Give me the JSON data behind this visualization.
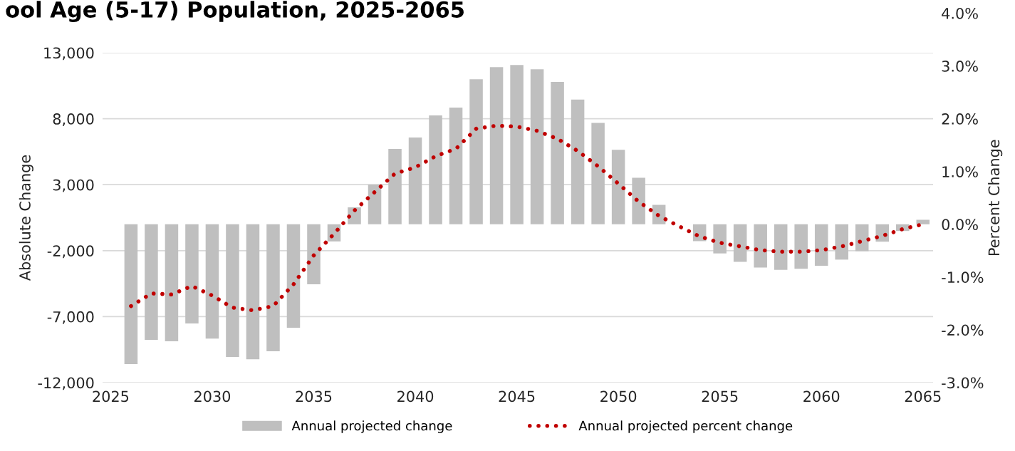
{
  "chart_data": {
    "type": "bar",
    "title": "ool Age (5-17) Population, 2025-2065",
    "x": [
      2026,
      2027,
      2028,
      2029,
      2030,
      2031,
      2032,
      2033,
      2034,
      2035,
      2036,
      2037,
      2038,
      2039,
      2040,
      2041,
      2042,
      2043,
      2044,
      2045,
      2046,
      2047,
      2048,
      2049,
      2050,
      2051,
      2052,
      2053,
      2054,
      2055,
      2056,
      2057,
      2058,
      2059,
      2060,
      2061,
      2062,
      2063,
      2064,
      2065
    ],
    "series": [
      {
        "name": "Annual projected change",
        "color": "#bfbfbf",
        "values": [
          -10600,
          -8760,
          -8870,
          -7520,
          -8660,
          -10060,
          -10230,
          -9620,
          -7840,
          -4550,
          -1300,
          1280,
          3010,
          5710,
          6570,
          8250,
          8840,
          10990,
          11900,
          12070,
          11750,
          10790,
          9450,
          7680,
          5640,
          3530,
          1470,
          0,
          -1280,
          -2210,
          -2850,
          -3280,
          -3450,
          -3380,
          -3150,
          -2680,
          -2040,
          -1320,
          -510,
          340
        ]
      },
      {
        "name": "Annual projected percent change",
        "type": "line",
        "axis": "y2",
        "color": "#c00000",
        "line_style": "dotted",
        "values": [
          -1.55,
          -1.31,
          -1.33,
          -1.17,
          -1.35,
          -1.58,
          -1.63,
          -1.55,
          -1.14,
          -0.59,
          -0.18,
          0.26,
          0.61,
          0.96,
          1.08,
          1.29,
          1.43,
          1.81,
          1.87,
          1.85,
          1.77,
          1.62,
          1.39,
          1.1,
          0.77,
          0.43,
          0.16,
          -0.04,
          -0.23,
          -0.35,
          -0.42,
          -0.49,
          -0.52,
          -0.52,
          -0.49,
          -0.42,
          -0.32,
          -0.22,
          -0.09,
          0.0
        ]
      }
    ],
    "ylabel": "Absolute Change",
    "y2label": "Percent Change",
    "xlim": [
      2024.6,
      2065.5
    ],
    "xticks": [
      2025,
      2030,
      2035,
      2040,
      2045,
      2050,
      2055,
      2060,
      2065
    ],
    "ylim": [
      -12000,
      13000
    ],
    "yticks": [
      {
        "value": -12000,
        "label": "-12,000"
      },
      {
        "value": -7000,
        "label": "-7,000"
      },
      {
        "value": -2000,
        "label": "-2,000"
      },
      {
        "value": 3000,
        "label": "3,000"
      },
      {
        "value": 8000,
        "label": "8,000"
      },
      {
        "value": 13000,
        "label": "13,000"
      }
    ],
    "y2lim": [
      -3,
      4
    ],
    "y2ticks": [
      {
        "value": -3,
        "label": "-3.0%"
      },
      {
        "value": -2,
        "label": "-2.0%"
      },
      {
        "value": -1,
        "label": "-1.0%"
      },
      {
        "value": 0,
        "label": "0.0%"
      },
      {
        "value": 1,
        "label": "1.0%"
      },
      {
        "value": 2,
        "label": "2.0%"
      },
      {
        "value": 3,
        "label": "3.0%"
      },
      {
        "value": 4,
        "label": "4.0%"
      }
    ],
    "grid": "y",
    "legend": "bottom"
  }
}
